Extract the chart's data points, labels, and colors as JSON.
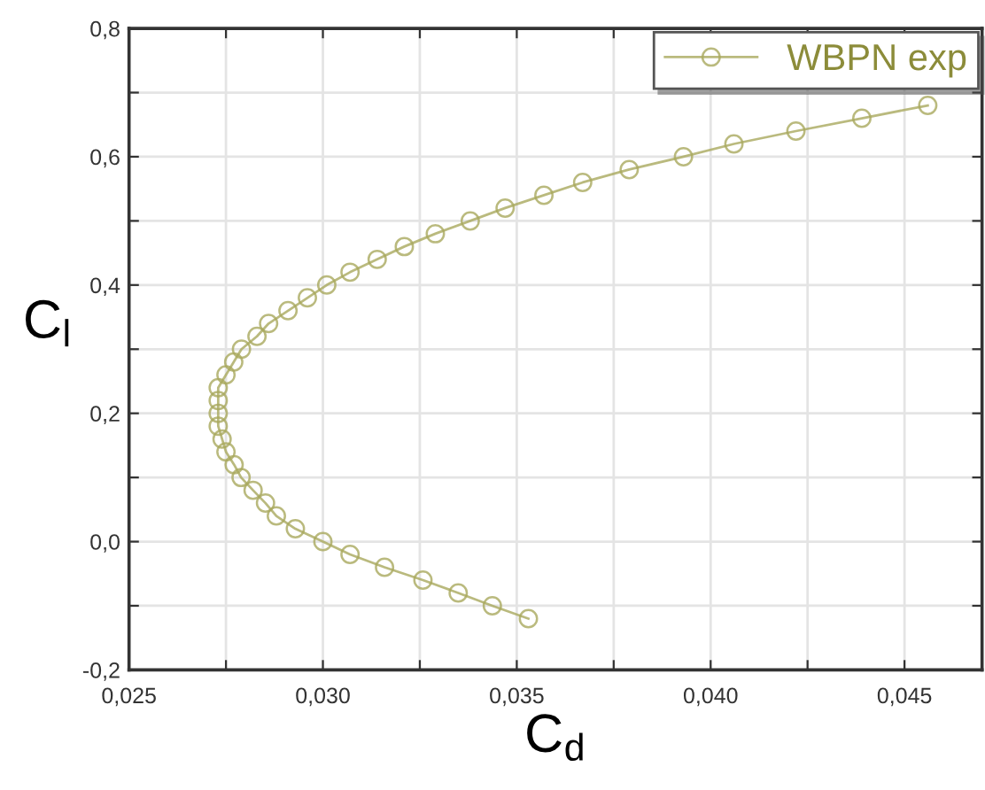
{
  "chart_data": {
    "type": "line",
    "xlabel": "C$_{d}$",
    "ylabel": "C$_{l}$",
    "x": [
      0.0353,
      0.03437,
      0.03349,
      0.03258,
      0.03159,
      0.0307,
      0.03,
      0.02929,
      0.0288,
      0.02852,
      0.0282,
      0.02789,
      0.02771,
      0.0275,
      0.0274,
      0.0273,
      0.0273,
      0.0273,
      0.0273,
      0.0275,
      0.0277,
      0.0279,
      0.0283,
      0.0286,
      0.0291,
      0.0296,
      0.0301,
      0.0307,
      0.0314,
      0.0321,
      0.0329,
      0.0338,
      0.0347,
      0.0357,
      0.0367,
      0.0379,
      0.0393,
      0.0406,
      0.0422,
      0.0439,
      0.0456
    ],
    "series": [
      {
        "name": "WBPN exp",
        "color": "#a9a95e",
        "values": [
          -0.12,
          -0.1,
          -0.08,
          -0.06,
          -0.04,
          -0.02,
          0.0,
          0.02,
          0.04,
          0.06,
          0.08,
          0.1,
          0.12,
          0.14,
          0.16,
          0.18,
          0.2,
          0.22,
          0.24,
          0.26,
          0.28,
          0.3,
          0.32,
          0.34,
          0.36,
          0.38,
          0.4,
          0.42,
          0.44,
          0.46,
          0.48,
          0.5,
          0.52,
          0.54,
          0.56,
          0.58,
          0.6,
          0.62,
          0.64,
          0.66,
          0.68
        ]
      }
    ],
    "xlim": [
      0.025,
      0.047
    ],
    "xticks": [
      {
        "value": 0.025,
        "label": "0,025"
      },
      {
        "value": 0.0275,
        "label": null
      },
      {
        "value": 0.03,
        "label": "0,030"
      },
      {
        "value": 0.0325,
        "label": null
      },
      {
        "value": 0.035,
        "label": "0,035"
      },
      {
        "value": 0.0375,
        "label": null
      },
      {
        "value": 0.04,
        "label": "0,040"
      },
      {
        "value": 0.0425,
        "label": null
      },
      {
        "value": 0.045,
        "label": "0,045"
      }
    ],
    "ylim": [
      -0.2,
      0.8
    ],
    "yticks": [
      {
        "value": -0.2,
        "label": "-0,2"
      },
      {
        "value": -0.1,
        "label": null
      },
      {
        "value": 0.0,
        "label": "0,0"
      },
      {
        "value": 0.1,
        "label": null
      },
      {
        "value": 0.2,
        "label": "0,2"
      },
      {
        "value": 0.3,
        "label": null
      },
      {
        "value": 0.4,
        "label": "0,4"
      },
      {
        "value": 0.5,
        "label": null
      },
      {
        "value": 0.6,
        "label": "0,6"
      },
      {
        "value": 0.7,
        "label": null
      },
      {
        "value": 0.8,
        "label": "0,8"
      }
    ],
    "grid": true,
    "legend": "top right",
    "marker": "circle",
    "line_style": "solid"
  }
}
